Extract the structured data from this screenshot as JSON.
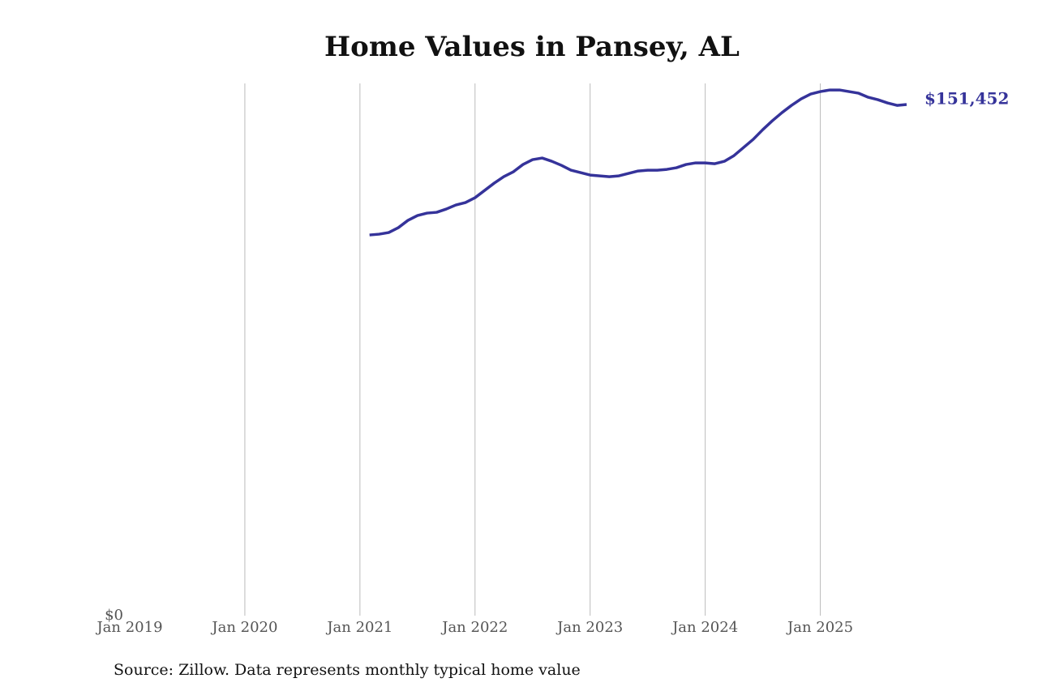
{
  "chart_data": {
    "type": "line",
    "title": "Home Values in Pansey, AL",
    "source": "Source: Zillow. Data represents monthly typical home value",
    "x": [
      "2021-02",
      "2021-03",
      "2021-04",
      "2021-05",
      "2021-06",
      "2021-07",
      "2021-08",
      "2021-09",
      "2021-10",
      "2021-11",
      "2021-12",
      "2022-01",
      "2022-02",
      "2022-03",
      "2022-04",
      "2022-05",
      "2022-06",
      "2022-07",
      "2022-08",
      "2022-09",
      "2022-10",
      "2022-11",
      "2022-12",
      "2023-01",
      "2023-02",
      "2023-03",
      "2023-04",
      "2023-05",
      "2023-06",
      "2023-07",
      "2023-08",
      "2023-09",
      "2023-10",
      "2023-11",
      "2023-12",
      "2024-01",
      "2024-02",
      "2024-03",
      "2024-04",
      "2024-05",
      "2024-06",
      "2024-07",
      "2024-08",
      "2024-09",
      "2024-10",
      "2024-11",
      "2024-12",
      "2025-01",
      "2025-02",
      "2025-03",
      "2025-04",
      "2025-05",
      "2025-06",
      "2025-07",
      "2025-08",
      "2025-09",
      "2025-10"
    ],
    "series": [
      {
        "name": "Pansey, AL",
        "color": "#35339a",
        "values": [
          112800,
          113040,
          113520,
          114960,
          117120,
          118560,
          119280,
          119520,
          120480,
          121680,
          122400,
          123840,
          126000,
          128160,
          130080,
          131520,
          133680,
          135120,
          135600,
          134640,
          133440,
          132000,
          131280,
          130560,
          130320,
          130080,
          130320,
          131040,
          131760,
          132000,
          132000,
          132240,
          132720,
          133680,
          134160,
          134160,
          133920,
          134640,
          136320,
          138720,
          141120,
          144000,
          146640,
          149040,
          151200,
          153120,
          154560,
          155280,
          155760,
          155760,
          155280,
          154800,
          153600,
          152880,
          151920,
          151200,
          151452
        ],
        "value_labels": [
          null,
          null,
          null,
          null,
          null,
          null,
          null,
          null,
          null,
          null,
          null,
          null,
          null,
          null,
          null,
          null,
          null,
          null,
          null,
          null,
          null,
          null,
          null,
          null,
          null,
          null,
          null,
          null,
          null,
          null,
          null,
          null,
          null,
          null,
          null,
          null,
          null,
          null,
          null,
          null,
          null,
          null,
          null,
          null,
          null,
          null,
          null,
          null,
          null,
          null,
          null,
          null,
          null,
          null,
          null,
          null,
          "$151,452"
        ]
      }
    ],
    "xlim": [
      "2019-01",
      "2025-10"
    ],
    "xticks": [
      {
        "value": "2019-01",
        "label": "Jan 2019"
      },
      {
        "value": "2020-01",
        "label": "Jan 2020"
      },
      {
        "value": "2021-01",
        "label": "Jan 2021"
      },
      {
        "value": "2022-01",
        "label": "Jan 2022"
      },
      {
        "value": "2023-01",
        "label": "Jan 2023"
      },
      {
        "value": "2024-01",
        "label": "Jan 2024"
      },
      {
        "value": "2025-01",
        "label": "Jan 2025"
      }
    ],
    "ylim": [
      0,
      157700
    ],
    "yticks": [
      {
        "value": 0,
        "label": "$0"
      }
    ],
    "grid": true
  }
}
